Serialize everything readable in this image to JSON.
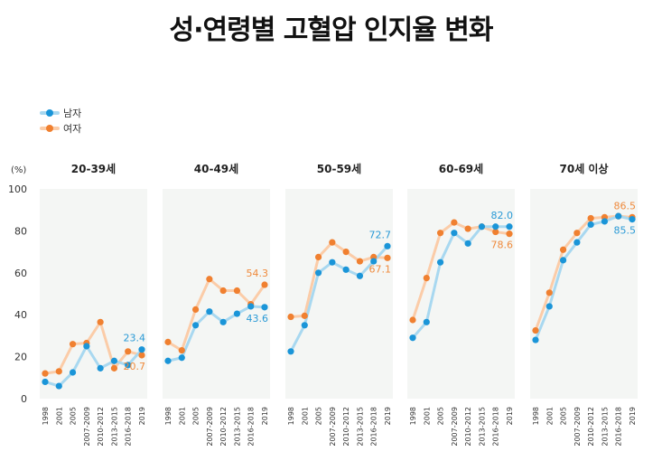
{
  "title": "성·연령별 고혈압 인지율 변화",
  "legend": {
    "male": "남자",
    "female": "여자"
  },
  "y_unit": "(%)",
  "colors": {
    "male_line": "#a8d8f0",
    "male_dot": "#1a95d8",
    "male_label": "#2a9ad6",
    "female_line": "#fbcca8",
    "female_dot": "#f08030",
    "female_label": "#ef8a3c",
    "panel_bg": "#f4f6f4"
  },
  "chart_data": {
    "type": "line",
    "ylim": [
      0,
      100
    ],
    "yticks": [
      "0",
      "20",
      "40",
      "60",
      "80",
      "100"
    ],
    "categories": [
      "1998",
      "2001",
      "2005",
      "2007-2009",
      "2010-2012",
      "2013-2015",
      "2016-2018",
      "2019"
    ],
    "panels": [
      {
        "title": "20-39세",
        "series": [
          {
            "name": "남자",
            "values": [
              8,
              6,
              12.5,
              25,
              14.5,
              18,
              16,
              23.4
            ]
          },
          {
            "name": "여자",
            "values": [
              12,
              13,
              26,
              26.5,
              36.5,
              14.5,
              22.5,
              20.7
            ]
          }
        ],
        "end_labels": {
          "male": "23.4",
          "female": "20.7"
        }
      },
      {
        "title": "40-49세",
        "series": [
          {
            "name": "남자",
            "values": [
              18,
              19.5,
              35,
              41.5,
              36.5,
              40.5,
              44,
              43.6
            ]
          },
          {
            "name": "여자",
            "values": [
              27,
              23,
              42.5,
              57,
              51.5,
              51.5,
              45,
              54.3
            ]
          }
        ],
        "end_labels": {
          "male": "43.6",
          "female": "54.3"
        }
      },
      {
        "title": "50-59세",
        "series": [
          {
            "name": "남자",
            "values": [
              22.5,
              35,
              60,
              65,
              61.5,
              58.5,
              65.5,
              72.7
            ]
          },
          {
            "name": "여자",
            "values": [
              39,
              39.5,
              67.5,
              74.5,
              70,
              65.5,
              67.5,
              67.1
            ]
          }
        ],
        "end_labels": {
          "male": "72.7",
          "female": "67.1"
        }
      },
      {
        "title": "60-69세",
        "series": [
          {
            "name": "남자",
            "values": [
              29,
              36.5,
              65,
              79,
              74,
              82,
              82,
              82.0
            ]
          },
          {
            "name": "여자",
            "values": [
              37.5,
              57.5,
              79,
              84,
              81,
              82,
              79.5,
              78.6
            ]
          }
        ],
        "end_labels": {
          "male": "82.0",
          "female": "78.6"
        }
      },
      {
        "title": "70세 이상",
        "series": [
          {
            "name": "남자",
            "values": [
              28,
              44,
              66,
              74.5,
              83,
              84.5,
              87,
              85.5
            ]
          },
          {
            "name": "여자",
            "values": [
              32.5,
              50.5,
              71,
              79,
              86,
              86.5,
              87,
              86.5
            ]
          }
        ],
        "end_labels": {
          "male": "85.5",
          "female": "86.5"
        }
      }
    ]
  }
}
